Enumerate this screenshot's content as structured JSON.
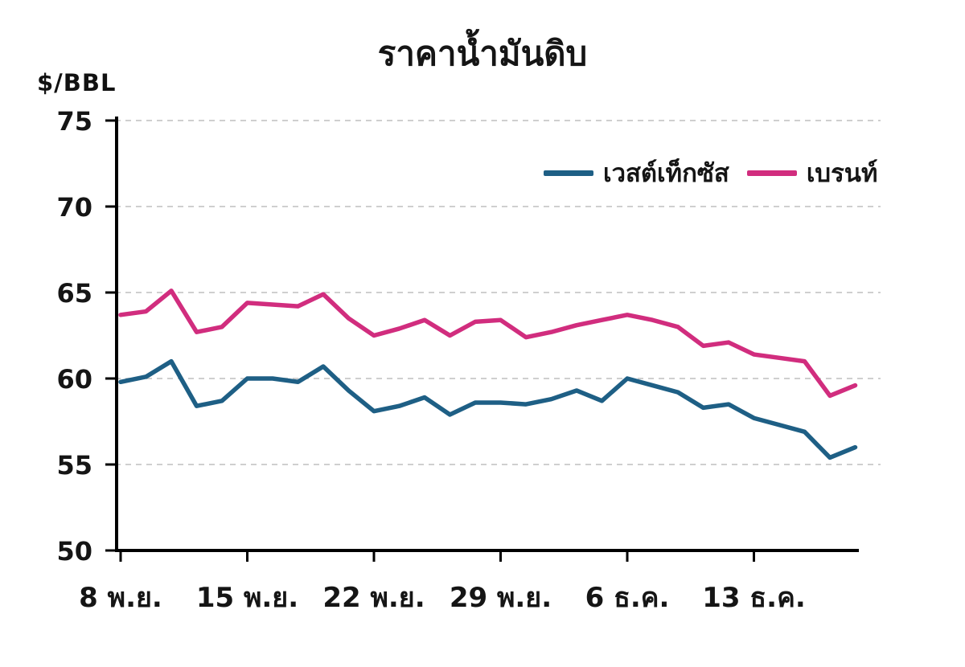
{
  "title": "ราคาน้ำมันดิบ",
  "unit_label": "$/BBL",
  "chart_data": {
    "type": "line",
    "title": "ราคาน้ำมันดิบ",
    "ylabel": "$/BBL",
    "ylim": [
      50,
      75
    ],
    "yticks": [
      50,
      55,
      60,
      65,
      70,
      75
    ],
    "grid": "horizontal-dashed",
    "legend_position": "top-right-inside",
    "xtick_labels": [
      "8 พ.ย.",
      "15 พ.ย.",
      "22 พ.ย.",
      "29 พ.ย.",
      "6 ธ.ค.",
      "13 ธ.ค."
    ],
    "xtick_indices": [
      0,
      5,
      10,
      15,
      20,
      25
    ],
    "series": [
      {
        "key": "west-texas",
        "name": "เวสต์เท็กซัส",
        "color": "#1e5f85",
        "values": [
          59.8,
          60.1,
          61.0,
          58.4,
          58.7,
          60.0,
          60.0,
          59.8,
          60.7,
          59.3,
          58.1,
          58.4,
          58.9,
          57.9,
          58.6,
          58.6,
          58.5,
          58.8,
          59.3,
          58.7,
          60.0,
          59.6,
          59.2,
          58.3,
          58.5,
          57.7,
          57.3,
          56.9,
          55.4,
          56.0
        ]
      },
      {
        "key": "brent",
        "name": "เบรนท์",
        "color": "#d12d7e",
        "values": [
          63.7,
          63.9,
          65.1,
          62.7,
          63.0,
          64.4,
          64.3,
          64.2,
          64.9,
          63.5,
          62.5,
          62.9,
          63.4,
          62.5,
          63.3,
          63.4,
          62.4,
          62.7,
          63.1,
          63.4,
          63.7,
          63.4,
          63.0,
          61.9,
          62.1,
          61.4,
          61.2,
          61.0,
          59.0,
          59.6
        ]
      }
    ]
  }
}
